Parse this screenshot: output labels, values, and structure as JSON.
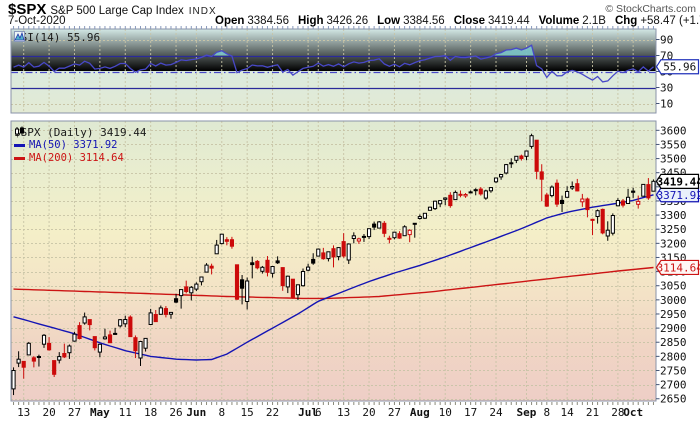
{
  "header": {
    "symbol": "$SPX",
    "name": "S&P 500 Large Cap Index",
    "exchange": "INDX",
    "copyright": "© StockCharts.com",
    "date": "7-Oct-2020",
    "fields": [
      {
        "label": "Open",
        "value": "3384.56"
      },
      {
        "label": "High",
        "value": "3426.26"
      },
      {
        "label": "Low",
        "value": "3384.56"
      },
      {
        "label": "Close",
        "value": "3419.44"
      },
      {
        "label": "Volume",
        "value": "2.1B"
      },
      {
        "label": "Chg",
        "value": "+58.47 (+1.74%)"
      }
    ],
    "chg_direction": "up",
    "up_arrow": "▲"
  },
  "rsi_panel": {
    "legend": "RSI(14) 55.96",
    "last_value_label": "55.96",
    "axis_labels": [
      90,
      70,
      50,
      30,
      10
    ],
    "overbought": 70,
    "oversold": 30,
    "midline": 50
  },
  "main_panel": {
    "legend_title": "$SPX (Daily) 3419.44",
    "legend_ma50": "MA(50) 3371.92",
    "legend_ma200": "MA(200) 3114.64",
    "last_price_label": "3419.44",
    "ma50_label": "3371.92",
    "ma200_label": "3114.64"
  },
  "colors": {
    "up_candle_stroke": "#000000",
    "up_candle_fill": "#ffffff",
    "down_candle": "#cc0a0a",
    "black_candle_fill": "#000000",
    "ma50": "#1414b4",
    "ma200": "#cc1414",
    "rsi_line": "#4848c8",
    "rsi_band_line": "#2a2a9a",
    "overbought_fill": "#7cc3c5",
    "grid": "#c8c4a6",
    "panel_border": "#8a93a8",
    "axis_text": "#111111",
    "chg_arrow": "#1d7044"
  },
  "chart_data": {
    "type": "candlestick",
    "symbol": "$SPX",
    "timeframe": "Daily",
    "date_range": "8-Apr-2020 to 7-Oct-2020",
    "y_axis": {
      "min": 2650,
      "max": 3600,
      "step": 50
    },
    "x_axis": {
      "ticks": [
        {
          "i": 2,
          "label": "13"
        },
        {
          "i": 7,
          "label": "20"
        },
        {
          "i": 12,
          "label": "27"
        },
        {
          "i": 17,
          "label": "May",
          "month": true
        },
        {
          "i": 22,
          "label": "11"
        },
        {
          "i": 27,
          "label": "18"
        },
        {
          "i": 32,
          "label": "26"
        },
        {
          "i": 36,
          "label": "Jun",
          "month": true
        },
        {
          "i": 41,
          "label": "8"
        },
        {
          "i": 46,
          "label": "15"
        },
        {
          "i": 51,
          "label": "22"
        },
        {
          "i": 58,
          "label": "Jul",
          "month": true
        },
        {
          "i": 60,
          "label": "6"
        },
        {
          "i": 65,
          "label": "13"
        },
        {
          "i": 70,
          "label": "20"
        },
        {
          "i": 75,
          "label": "27"
        },
        {
          "i": 80,
          "label": "Aug",
          "month": true
        },
        {
          "i": 85,
          "label": "10"
        },
        {
          "i": 90,
          "label": "17"
        },
        {
          "i": 95,
          "label": "24"
        },
        {
          "i": 101,
          "label": "Sep",
          "month": true
        },
        {
          "i": 105,
          "label": "8"
        },
        {
          "i": 109,
          "label": "14"
        },
        {
          "i": 114,
          "label": "21"
        },
        {
          "i": 119,
          "label": "28"
        },
        {
          "i": 122,
          "label": "Oct",
          "month": true
        }
      ]
    },
    "candles": [
      [
        2685,
        2761,
        2663,
        2750
      ],
      [
        2776,
        2818,
        2762,
        2789.8
      ],
      [
        2782,
        2782,
        2721,
        2761.6
      ],
      [
        2805,
        2851,
        2805,
        2846.1
      ],
      [
        2795,
        2801,
        2761,
        2783.4
      ],
      [
        2799,
        2806,
        2764,
        2799.6
      ],
      [
        2843,
        2879,
        2830,
        2874.6
      ],
      [
        2846,
        2868,
        2820,
        2823.2
      ],
      [
        2785,
        2785,
        2727,
        2736.6
      ],
      [
        2787,
        2815,
        2775,
        2799.3
      ],
      [
        2810,
        2845,
        2794,
        2797.8
      ],
      [
        2813,
        2842,
        2791,
        2836.7
      ],
      [
        2854,
        2887,
        2852,
        2878.5
      ],
      [
        2909,
        2921,
        2860,
        2863.4
      ],
      [
        2918,
        2955,
        2912,
        2939.5
      ],
      [
        2930,
        2930,
        2892,
        2912.4
      ],
      [
        2870,
        2870,
        2821,
        2830.7
      ],
      [
        2815,
        2844,
        2797,
        2842.7
      ],
      [
        2862,
        2898,
        2859,
        2868.4
      ],
      [
        2876,
        2891,
        2847,
        2848.4
      ],
      [
        2878,
        2901,
        2876,
        2881.2
      ],
      [
        2908,
        2932,
        2902,
        2929.8
      ],
      [
        2915,
        2944,
        2903,
        2930.3
      ],
      [
        2939,
        2945,
        2869,
        2870.1
      ],
      [
        2866,
        2874,
        2794,
        2820
      ],
      [
        2794,
        2855,
        2766,
        2852.5
      ],
      [
        2829,
        2865,
        2817,
        2863.7
      ],
      [
        2913,
        2968,
        2913,
        2953.9
      ],
      [
        2948,
        2964,
        2922,
        2922.9
      ],
      [
        2949,
        2980,
        2948,
        2971.6
      ],
      [
        2969,
        2978,
        2938,
        2948.5
      ],
      [
        2949,
        2956,
        2933,
        2955.5
      ],
      [
        3004,
        3021,
        2988,
        2991.8
      ],
      [
        3015,
        3036,
        2969,
        3036.1
      ],
      [
        3046,
        3068,
        3023,
        3029.7
      ],
      [
        3025,
        3049,
        2998,
        3044.3
      ],
      [
        3038,
        3062,
        3031,
        3055.7
      ],
      [
        3064,
        3081,
        3051,
        3080.8
      ],
      [
        3098,
        3130,
        3098,
        3122.9
      ],
      [
        3119,
        3128,
        3090,
        3112.4
      ],
      [
        3163,
        3212,
        3163,
        3193.9
      ],
      [
        3199,
        3233,
        3196,
        3232.4
      ],
      [
        3213,
        3222,
        3193,
        3207.2
      ],
      [
        3213,
        3223,
        3181,
        3190.1
      ],
      [
        3124,
        3124,
        2999,
        3002.1
      ],
      [
        3071,
        3088,
        2984,
        3041.3
      ],
      [
        2994,
        3079,
        2966,
        3066.6
      ],
      [
        3131,
        3153,
        3076,
        3124.7
      ],
      [
        3136,
        3141,
        3108,
        3113.5
      ],
      [
        3101,
        3120,
        3093,
        3115.3
      ],
      [
        3140,
        3155,
        3083,
        3097.7
      ],
      [
        3094,
        3120,
        3079,
        3117.9
      ],
      [
        3138,
        3154,
        3127,
        3131.3
      ],
      [
        3114,
        3115,
        3032,
        3050.3
      ],
      [
        3046,
        3086,
        3024,
        3083.8
      ],
      [
        3073,
        3073,
        3004,
        3009.1
      ],
      [
        3018,
        3054,
        2999,
        3053.2
      ],
      [
        3050,
        3111,
        3047,
        3100.3
      ],
      [
        3105,
        3128,
        3101,
        3115.9
      ],
      [
        3143,
        3165,
        3124,
        3130
      ],
      [
        3155,
        3182,
        3155,
        3179.7
      ],
      [
        3166,
        3184,
        3142,
        3145.3
      ],
      [
        3146,
        3171,
        3136,
        3169.9
      ],
      [
        3181,
        3193,
        3115,
        3152.1
      ],
      [
        3153,
        3186,
        3140,
        3185
      ],
      [
        3206,
        3236,
        3149,
        3155.2
      ],
      [
        3141,
        3200,
        3127,
        3197.5
      ],
      [
        3217,
        3239,
        3200,
        3226.6
      ],
      [
        3208,
        3220,
        3198,
        3215.6
      ],
      [
        3224,
        3233,
        3205,
        3224.7
      ],
      [
        3224,
        3252,
        3215,
        3251.8
      ],
      [
        3268,
        3277,
        3247,
        3257.3
      ],
      [
        3254,
        3279,
        3253,
        3276
      ],
      [
        3271,
        3279,
        3222,
        3235.7
      ],
      [
        3218,
        3227,
        3200,
        3215.6
      ],
      [
        3220,
        3241,
        3214,
        3239.4
      ],
      [
        3234,
        3243,
        3216,
        3218.4
      ],
      [
        3227,
        3264,
        3227,
        3258.4
      ],
      [
        3231,
        3250,
        3204,
        3246.2
      ],
      [
        3270,
        3272,
        3220,
        3271.1
      ],
      [
        3288,
        3302,
        3284,
        3294.6
      ],
      [
        3289,
        3306,
        3286,
        3306.5
      ],
      [
        3317,
        3330,
        3317,
        3327.8
      ],
      [
        3323,
        3351,
        3318,
        3349.2
      ],
      [
        3340,
        3352,
        3328,
        3351.3
      ],
      [
        3356,
        3363,
        3335,
        3360.5
      ],
      [
        3370,
        3381,
        3326,
        3333.7
      ],
      [
        3355,
        3387,
        3355,
        3380.4
      ],
      [
        3372,
        3387,
        3363,
        3373.4
      ],
      [
        3368,
        3378,
        3361,
        3372.9
      ],
      [
        3380,
        3387,
        3379,
        3382
      ],
      [
        3387,
        3395,
        3370,
        3389.8
      ],
      [
        3392,
        3399,
        3369,
        3374.9
      ],
      [
        3360,
        3390,
        3354,
        3385.5
      ],
      [
        3386,
        3399,
        3379,
        3397.2
      ],
      [
        3418,
        3432,
        3413,
        3431.3
      ],
      [
        3435,
        3444,
        3425,
        3443.6
      ],
      [
        3449,
        3481,
        3444,
        3478.7
      ],
      [
        3485,
        3501,
        3467,
        3484.6
      ],
      [
        3494,
        3509,
        3484,
        3508
      ],
      [
        3509,
        3514,
        3493,
        3500.3
      ],
      [
        3508,
        3528,
        3494,
        3526.7
      ],
      [
        3543,
        3588,
        3535,
        3580.8
      ],
      [
        3565,
        3565,
        3427,
        3455.1
      ],
      [
        3453,
        3480,
        3349,
        3427
      ],
      [
        3371,
        3379,
        3329,
        3331.8
      ],
      [
        3369,
        3405,
        3363,
        3399
      ],
      [
        3413,
        3426,
        3329,
        3339.2
      ],
      [
        3352,
        3369,
        3311,
        3341
      ],
      [
        3363,
        3402,
        3363,
        3383.5
      ],
      [
        3396,
        3419,
        3389,
        3401.2
      ],
      [
        3411,
        3428,
        3384,
        3385.5
      ],
      [
        3347,
        3375,
        3329,
        3357
      ],
      [
        3357,
        3362,
        3292,
        3319.5
      ],
      [
        3285,
        3285,
        3229,
        3281.1
      ],
      [
        3295,
        3320,
        3270,
        3315.6
      ],
      [
        3320,
        3323,
        3232,
        3236.9
      ],
      [
        3226,
        3278,
        3209,
        3246.6
      ],
      [
        3236,
        3306,
        3228,
        3298.5
      ],
      [
        3333,
        3360,
        3332,
        3351.6
      ],
      [
        3350,
        3357,
        3327,
        3335.5
      ],
      [
        3341,
        3393,
        3340,
        3363
      ],
      [
        3385,
        3397,
        3361,
        3380.8
      ],
      [
        3338,
        3369,
        3323,
        3348.4
      ],
      [
        3367,
        3409,
        3367,
        3408.6
      ],
      [
        3408,
        3431,
        3354,
        3361
      ],
      [
        3384.56,
        3426.26,
        3384.56,
        3419.44
      ]
    ],
    "ma50_anchors": [
      [
        0,
        2940
      ],
      [
        7,
        2905
      ],
      [
        12,
        2880
      ],
      [
        17,
        2848
      ],
      [
        22,
        2820
      ],
      [
        27,
        2800
      ],
      [
        32,
        2790
      ],
      [
        36,
        2787
      ],
      [
        39,
        2789
      ],
      [
        42,
        2808
      ],
      [
        46,
        2850
      ],
      [
        51,
        2900
      ],
      [
        56,
        2950
      ],
      [
        60,
        2995
      ],
      [
        65,
        3030
      ],
      [
        70,
        3065
      ],
      [
        75,
        3095
      ],
      [
        80,
        3122
      ],
      [
        85,
        3152
      ],
      [
        90,
        3185
      ],
      [
        95,
        3218
      ],
      [
        100,
        3252
      ],
      [
        105,
        3290
      ],
      [
        109,
        3310
      ],
      [
        114,
        3328
      ],
      [
        119,
        3342
      ],
      [
        122,
        3352
      ],
      [
        126,
        3371.92
      ]
    ],
    "ma200_anchors": [
      [
        0,
        3038
      ],
      [
        22,
        3025
      ],
      [
        42,
        3012
      ],
      [
        57,
        3005
      ],
      [
        62,
        3005
      ],
      [
        72,
        3012
      ],
      [
        82,
        3028
      ],
      [
        92,
        3048
      ],
      [
        102,
        3068
      ],
      [
        112,
        3088
      ],
      [
        119,
        3102
      ],
      [
        126,
        3114.64
      ]
    ],
    "rsi": {
      "period": 14,
      "seed_avg_gain": 26,
      "seed_avg_loss": 21,
      "last": 55.96
    }
  }
}
